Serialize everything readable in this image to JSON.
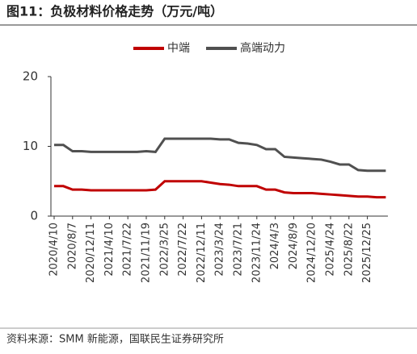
{
  "chart_data": {
    "type": "line",
    "title": "图11：负极材料价格走势（万元/吨）",
    "source": "资料来源：SMM 新能源，国联民生证券研究所",
    "categories": [
      "2020/4/10",
      null,
      "2020/8/7",
      null,
      "2020/12/11",
      null,
      "2021/4/10",
      null,
      "2021/7/22",
      null,
      "2021/11/19",
      null,
      "2022/3/25",
      null,
      "2022/7/22",
      null,
      "2022/12/11",
      null,
      "2023/3/24",
      null,
      "2023/7/21",
      null,
      "2023/11/24",
      null,
      "2024/4/3",
      null,
      "2024/8/9",
      null,
      "2024/12/20",
      null,
      "2025/4/24",
      null,
      "2025/8/22",
      null,
      "2025/12/25",
      null,
      null
    ],
    "series": [
      {
        "name": "中端",
        "color": "#c00000",
        "values": [
          4.3,
          4.3,
          3.8,
          3.8,
          3.7,
          3.7,
          3.7,
          3.7,
          3.7,
          3.7,
          3.7,
          3.8,
          5.0,
          5.0,
          5.0,
          5.0,
          5.0,
          4.8,
          4.6,
          4.5,
          4.3,
          4.3,
          4.3,
          3.8,
          3.8,
          3.4,
          3.3,
          3.3,
          3.3,
          3.2,
          3.1,
          3.0,
          2.9,
          2.8,
          2.8,
          2.7,
          2.7
        ]
      },
      {
        "name": "高端动力",
        "color": "#505050",
        "values": [
          10.2,
          10.2,
          9.3,
          9.3,
          9.2,
          9.2,
          9.2,
          9.2,
          9.2,
          9.2,
          9.3,
          9.2,
          11.1,
          11.1,
          11.1,
          11.1,
          11.1,
          11.1,
          11.0,
          11.0,
          10.5,
          10.4,
          10.2,
          9.6,
          9.6,
          8.5,
          8.4,
          8.3,
          8.2,
          8.1,
          7.8,
          7.4,
          7.4,
          6.6,
          6.5,
          6.5,
          6.5
        ]
      }
    ],
    "ylim": [
      0,
      20
    ],
    "yticks": [
      0,
      10,
      20
    ],
    "legend": "top"
  }
}
